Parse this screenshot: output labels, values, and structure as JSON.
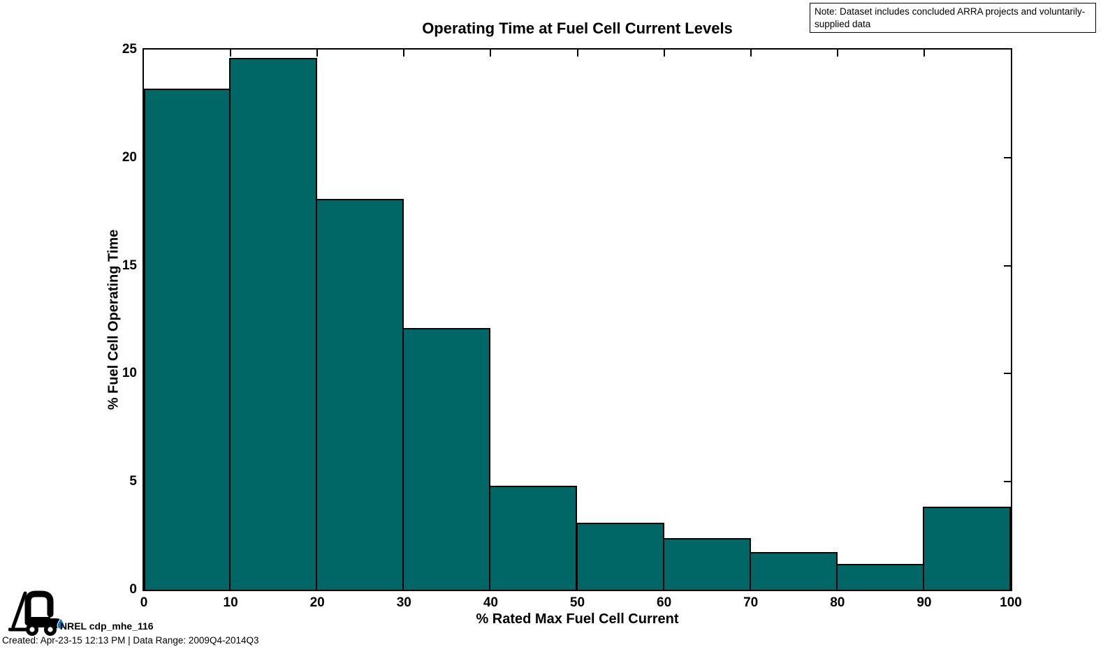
{
  "note": "Note: Dataset includes concluded ARRA projects and voluntarily-supplied data",
  "footer": {
    "logo_label": "NREL cdp_mhe_116",
    "created": "Created: Apr-23-15 12:13 PM | Data Range: 2009Q4-2014Q3"
  },
  "colors": {
    "bar_fill": "#006666",
    "bar_edge": "#000000",
    "axis": "#000000",
    "droplet_blue": "#1878be"
  },
  "icons": {
    "logo": "forklift-icon",
    "drop": "water-droplet-icon"
  },
  "chart_data": {
    "type": "bar",
    "title": "Operating Time at Fuel Cell Current Levels",
    "xlabel": "% Rated Max Fuel Cell Current",
    "ylabel": "% Fuel Cell Operating Time",
    "bin_edges": [
      0,
      10,
      20,
      30,
      40,
      50,
      60,
      70,
      80,
      90,
      100
    ],
    "values": [
      23.2,
      24.6,
      18.1,
      12.1,
      4.8,
      3.1,
      2.4,
      1.75,
      1.2,
      3.85
    ],
    "xlim": [
      0,
      100
    ],
    "ylim": [
      0,
      25
    ],
    "xticks": [
      0,
      10,
      20,
      30,
      40,
      50,
      60,
      70,
      80,
      90,
      100
    ],
    "yticks": [
      0,
      5,
      10,
      15,
      20,
      25
    ],
    "grid": false,
    "legend": "none"
  }
}
